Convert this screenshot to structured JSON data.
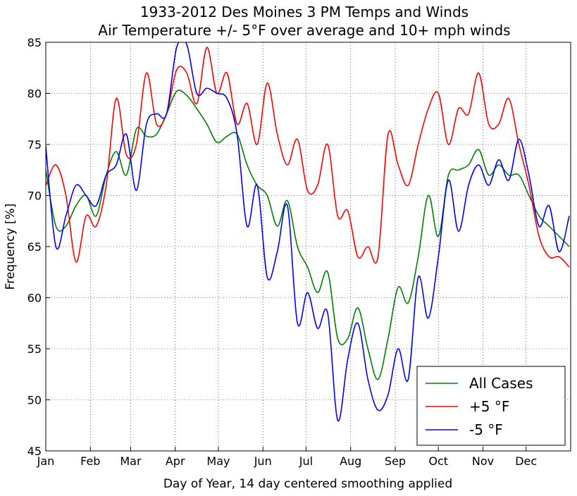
{
  "chart_data": {
    "type": "line",
    "title": "1933-2012 Des Moines 3 PM Temps and Winds",
    "subtitle": "Air Temperature +/- 5°F over average and 10+ mph winds",
    "xlabel": "Day of Year, 14 day centered smoothing applied",
    "ylabel": "Frequency [%]",
    "x": [
      1,
      8,
      15,
      22,
      29,
      36,
      43,
      50,
      57,
      64,
      71,
      78,
      85,
      92,
      99,
      106,
      113,
      120,
      127,
      134,
      141,
      148,
      155,
      162,
      169,
      176,
      183,
      190,
      197,
      204,
      211,
      218,
      225,
      232,
      239,
      246,
      253,
      260,
      267,
      274,
      281,
      288,
      295,
      302,
      309,
      316,
      323,
      330,
      337,
      344,
      351,
      358,
      365
    ],
    "series": [
      {
        "name": "All Cases",
        "color": "#008000",
        "values": [
          72.5,
          67,
          67,
          69,
          70,
          68,
          72,
          74.3,
          72,
          76.5,
          75.8,
          76,
          78,
          80.2,
          79.8,
          78.5,
          77,
          75.2,
          75.8,
          76,
          73,
          71,
          70,
          67,
          69.5,
          65,
          63,
          60.5,
          62.5,
          56,
          56,
          59,
          55,
          52,
          56,
          61,
          59.5,
          64,
          70,
          66,
          72,
          72.5,
          73,
          74.5,
          72,
          73,
          72,
          72,
          70,
          68,
          67,
          66,
          65
        ]
      },
      {
        "name": "+5 °F",
        "color": "#ff0000",
        "values": [
          71,
          73,
          70,
          63.5,
          68,
          67,
          71,
          79.5,
          74,
          75,
          82,
          77,
          78,
          82.3,
          82,
          79,
          84.5,
          80,
          82,
          77,
          79,
          75,
          81,
          76,
          73,
          75.5,
          70.5,
          71,
          75,
          68,
          68.5,
          64,
          65,
          64,
          76,
          73,
          71,
          75,
          78.5,
          80,
          75,
          78.5,
          78,
          82,
          77,
          77,
          79.5,
          75,
          71,
          66,
          64,
          64,
          63
        ]
      },
      {
        "name": "-5 °F",
        "color": "#0000ff",
        "values": [
          74.8,
          65,
          68,
          71,
          70,
          69,
          72,
          73,
          76,
          70.5,
          77,
          78,
          78,
          84.5,
          84.8,
          80,
          80.5,
          80,
          79.5,
          76,
          67,
          71,
          62,
          64.5,
          69,
          57.5,
          60.5,
          57,
          58.5,
          48,
          54,
          57.5,
          52,
          49,
          50.5,
          55,
          52,
          62,
          58,
          64,
          71.5,
          66.5,
          71,
          73,
          71,
          73.5,
          71.5,
          75.5,
          72,
          67,
          69,
          64.5,
          68
        ]
      }
    ],
    "xlim": [
      1,
      366
    ],
    "xticks": [
      {
        "value": 1,
        "label": "Jan"
      },
      {
        "value": 32,
        "label": "Feb"
      },
      {
        "value": 60,
        "label": "Mar"
      },
      {
        "value": 91,
        "label": "Apr"
      },
      {
        "value": 121,
        "label": "May"
      },
      {
        "value": 152,
        "label": "Jun"
      },
      {
        "value": 182,
        "label": "Jul"
      },
      {
        "value": 213,
        "label": "Aug"
      },
      {
        "value": 244,
        "label": "Sep"
      },
      {
        "value": 274,
        "label": "Oct"
      },
      {
        "value": 305,
        "label": "Nov"
      },
      {
        "value": 335,
        "label": "Dec"
      }
    ],
    "ylim": [
      45,
      85
    ],
    "yticks": [
      45,
      50,
      55,
      60,
      65,
      70,
      75,
      80,
      85
    ],
    "grid": true,
    "legend": "lower right"
  }
}
